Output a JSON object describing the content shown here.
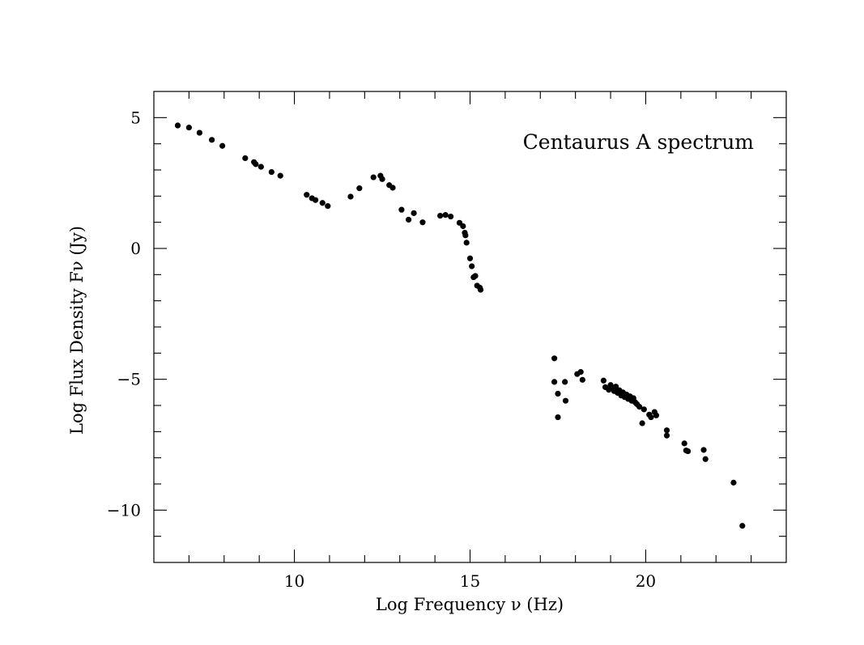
{
  "chart_data": {
    "type": "scatter",
    "title": "",
    "annotation": "Centaurus A spectrum",
    "xlabel": "Log Frequency ν (Hz)",
    "ylabel": "Log Flux Density Fν (Jy)",
    "xlim": [
      6,
      24
    ],
    "ylim": [
      -12,
      6
    ],
    "xticks_major": [
      10,
      15,
      20
    ],
    "yticks_major": [
      5,
      0,
      -5,
      -10
    ],
    "xtick_labels": [
      "10",
      "15",
      "20"
    ],
    "ytick_labels": [
      "5",
      "0",
      "−10"
    ],
    "ytick_label_minus5": "−5",
    "grid": false,
    "legend": "none",
    "series": [
      {
        "points": [
          [
            6.68,
            4.7
          ],
          [
            7.0,
            4.62
          ],
          [
            7.3,
            4.42
          ],
          [
            7.65,
            4.15
          ],
          [
            7.95,
            3.92
          ],
          [
            8.6,
            3.45
          ],
          [
            8.85,
            3.3
          ],
          [
            8.9,
            3.22
          ],
          [
            9.05,
            3.12
          ],
          [
            9.35,
            2.92
          ],
          [
            9.6,
            2.78
          ],
          [
            10.35,
            2.05
          ],
          [
            10.5,
            1.92
          ],
          [
            10.6,
            1.85
          ],
          [
            10.8,
            1.74
          ],
          [
            10.95,
            1.62
          ],
          [
            11.6,
            1.98
          ],
          [
            11.85,
            2.3
          ],
          [
            12.25,
            2.72
          ],
          [
            12.45,
            2.78
          ],
          [
            12.5,
            2.65
          ],
          [
            12.7,
            2.42
          ],
          [
            12.8,
            2.32
          ],
          [
            13.05,
            1.48
          ],
          [
            13.25,
            1.1
          ],
          [
            13.4,
            1.35
          ],
          [
            13.65,
            1.0
          ],
          [
            14.15,
            1.25
          ],
          [
            14.3,
            1.28
          ],
          [
            14.45,
            1.22
          ],
          [
            14.7,
            0.98
          ],
          [
            14.8,
            0.85
          ],
          [
            14.85,
            0.6
          ],
          [
            14.87,
            0.5
          ],
          [
            14.9,
            0.22
          ],
          [
            15.0,
            -0.38
          ],
          [
            15.05,
            -0.68
          ],
          [
            15.1,
            -1.1
          ],
          [
            15.15,
            -1.05
          ],
          [
            15.2,
            -1.42
          ],
          [
            15.28,
            -1.5
          ],
          [
            15.3,
            -1.58
          ],
          [
            17.4,
            -4.2
          ],
          [
            17.4,
            -5.1
          ],
          [
            17.5,
            -5.55
          ],
          [
            17.5,
            -6.45
          ],
          [
            17.7,
            -5.1
          ],
          [
            17.72,
            -5.82
          ],
          [
            18.05,
            -4.8
          ],
          [
            18.15,
            -4.72
          ],
          [
            18.2,
            -5.02
          ],
          [
            18.8,
            -5.05
          ],
          [
            18.85,
            -5.3
          ],
          [
            18.95,
            -5.4
          ],
          [
            19.0,
            -5.22
          ],
          [
            19.05,
            -5.35
          ],
          [
            19.1,
            -5.45
          ],
          [
            19.15,
            -5.28
          ],
          [
            19.2,
            -5.52
          ],
          [
            19.25,
            -5.42
          ],
          [
            19.3,
            -5.62
          ],
          [
            19.35,
            -5.5
          ],
          [
            19.4,
            -5.68
          ],
          [
            19.45,
            -5.58
          ],
          [
            19.5,
            -5.75
          ],
          [
            19.55,
            -5.65
          ],
          [
            19.6,
            -5.82
          ],
          [
            19.65,
            -5.72
          ],
          [
            19.7,
            -5.88
          ],
          [
            19.75,
            -5.95
          ],
          [
            19.82,
            -6.05
          ],
          [
            19.9,
            -6.68
          ],
          [
            19.95,
            -6.15
          ],
          [
            20.1,
            -6.35
          ],
          [
            20.15,
            -6.45
          ],
          [
            20.25,
            -6.25
          ],
          [
            20.3,
            -6.38
          ],
          [
            20.6,
            -6.95
          ],
          [
            20.6,
            -7.15
          ],
          [
            21.1,
            -7.45
          ],
          [
            21.15,
            -7.72
          ],
          [
            21.2,
            -7.75
          ],
          [
            21.65,
            -7.7
          ],
          [
            21.7,
            -8.05
          ],
          [
            22.5,
            -8.95
          ],
          [
            22.75,
            -10.6
          ]
        ]
      }
    ]
  }
}
